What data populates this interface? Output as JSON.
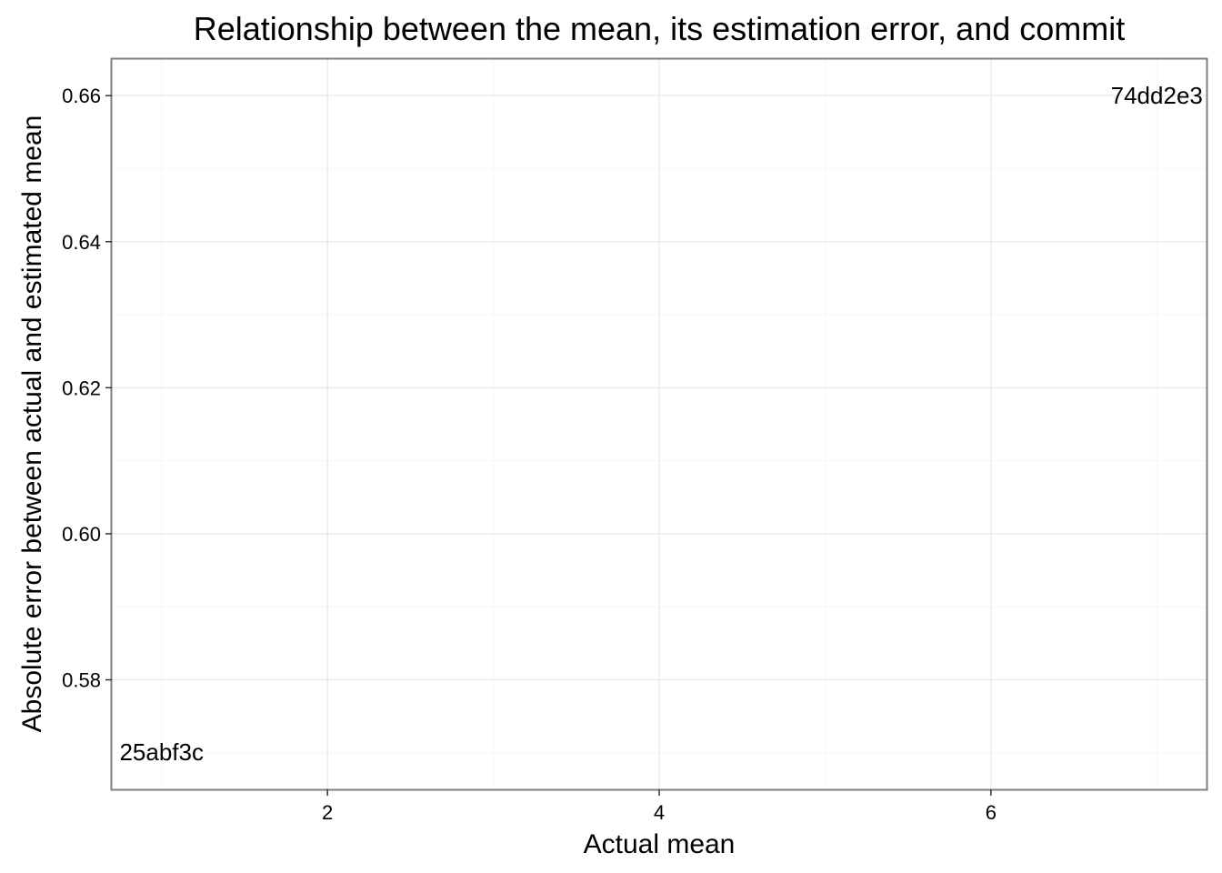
{
  "chart_data": {
    "type": "scatter",
    "title": "Relationship between the mean, its estimation error, and commit",
    "xlabel": "Actual mean",
    "ylabel": "Absolute error between actual and estimated mean",
    "xlim": [
      0.7,
      7.3
    ],
    "ylim": [
      0.565,
      0.665
    ],
    "x_ticks": [
      2,
      4,
      6
    ],
    "x_minor_ticks": [
      1,
      3,
      5,
      7
    ],
    "y_ticks": [
      0.58,
      0.6,
      0.62,
      0.64,
      0.66
    ],
    "y_tick_labels": [
      "0.58",
      "0.60",
      "0.62",
      "0.64",
      "0.66"
    ],
    "y_minor_ticks": [
      0.57,
      0.59,
      0.61,
      0.63,
      0.65
    ],
    "grid": true,
    "points": [
      {
        "label": "25abf3c",
        "x": 1.0,
        "y": 0.5701
      },
      {
        "label": "74dd2e3",
        "x": 7.0,
        "y": 0.66
      }
    ],
    "colors": {
      "background": "#ffffff",
      "panel_border": "#7f7f7f",
      "grid_major": "#ebebeb",
      "grid_minor": "#f5f5f5",
      "text": "#000000"
    }
  }
}
